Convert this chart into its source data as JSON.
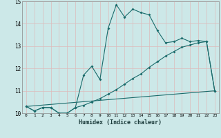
{
  "xlabel": "Humidex (Indice chaleur)",
  "background_color": "#cce8e8",
  "grid_color": "#ddbbbb",
  "line_color": "#1a6b6b",
  "xlim": [
    -0.5,
    23.5
  ],
  "ylim": [
    10,
    15
  ],
  "yticks": [
    10,
    11,
    12,
    13,
    14,
    15
  ],
  "xticks": [
    0,
    1,
    2,
    3,
    4,
    5,
    6,
    7,
    8,
    9,
    10,
    11,
    12,
    13,
    14,
    15,
    16,
    17,
    18,
    19,
    20,
    21,
    22,
    23
  ],
  "line1_x": [
    0,
    1,
    2,
    3,
    4,
    5,
    6,
    7,
    8,
    9,
    10,
    11,
    12,
    13,
    14,
    15,
    16,
    17,
    18,
    19,
    20,
    21,
    22,
    23
  ],
  "line1_y": [
    10.3,
    10.1,
    10.25,
    10.25,
    10.0,
    10.0,
    10.25,
    11.7,
    12.1,
    11.5,
    13.8,
    14.85,
    14.3,
    14.65,
    14.5,
    14.4,
    13.7,
    13.15,
    13.2,
    13.35,
    13.2,
    13.25,
    13.2,
    11.0
  ],
  "line2_x": [
    0,
    1,
    2,
    3,
    4,
    5,
    6,
    7,
    8,
    9,
    10,
    11,
    12,
    13,
    14,
    15,
    16,
    17,
    18,
    19,
    20,
    21,
    22,
    23
  ],
  "line2_y": [
    10.3,
    10.1,
    10.25,
    10.25,
    10.0,
    10.0,
    10.25,
    10.35,
    10.5,
    10.65,
    10.85,
    11.05,
    11.3,
    11.55,
    11.75,
    12.05,
    12.3,
    12.55,
    12.75,
    12.95,
    13.05,
    13.15,
    13.2,
    11.0
  ],
  "line3_x": [
    0,
    23
  ],
  "line3_y": [
    10.3,
    11.0
  ]
}
